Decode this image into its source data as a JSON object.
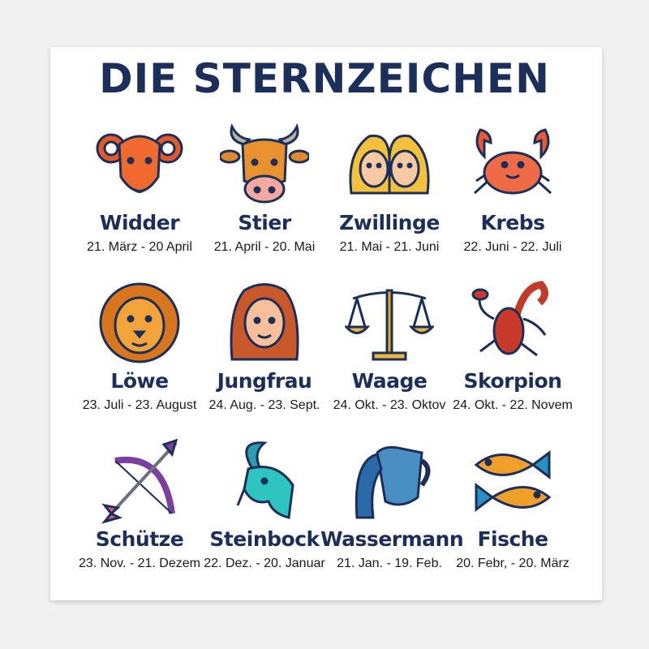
{
  "title": "DIE STERNZEICHEN",
  "colors": {
    "title": "#1b2f5a",
    "outline": "#1b2f5a"
  },
  "signs": [
    {
      "name": "Widder",
      "dates": "21. März - 20 April",
      "icon": "ram-icon"
    },
    {
      "name": "Stier",
      "dates": "21. April - 20. Mai",
      "icon": "bull-icon"
    },
    {
      "name": "Zwillinge",
      "dates": "21. Mai - 21. Juni",
      "icon": "twins-icon"
    },
    {
      "name": "Krebs",
      "dates": "22. Juni - 22. Juli",
      "icon": "crab-icon"
    },
    {
      "name": "Löwe",
      "dates": "23. Juli - 23. August",
      "icon": "lion-icon"
    },
    {
      "name": "Jungfrau",
      "dates": "24. Aug. - 23. Sept.",
      "icon": "maiden-icon"
    },
    {
      "name": "Waage",
      "dates": "24. Okt. - 23. Oktov",
      "icon": "scales-icon"
    },
    {
      "name": "Skorpion",
      "dates": "24. Okt. - 22. Novem",
      "icon": "scorpion-icon"
    },
    {
      "name": "Schütze",
      "dates": "23. Nov. - 21. Dezem",
      "icon": "bow-arrow-icon"
    },
    {
      "name": "Steinbock",
      "dates": "22. Dez. - 20. Januar",
      "icon": "goat-icon"
    },
    {
      "name": "Wassermann",
      "dates": "21. Jan. - 19. Feb.",
      "icon": "water-jug-icon"
    },
    {
      "name": "Fische",
      "dates": "20. Febr, - 20. März",
      "icon": "fish-icon"
    }
  ]
}
